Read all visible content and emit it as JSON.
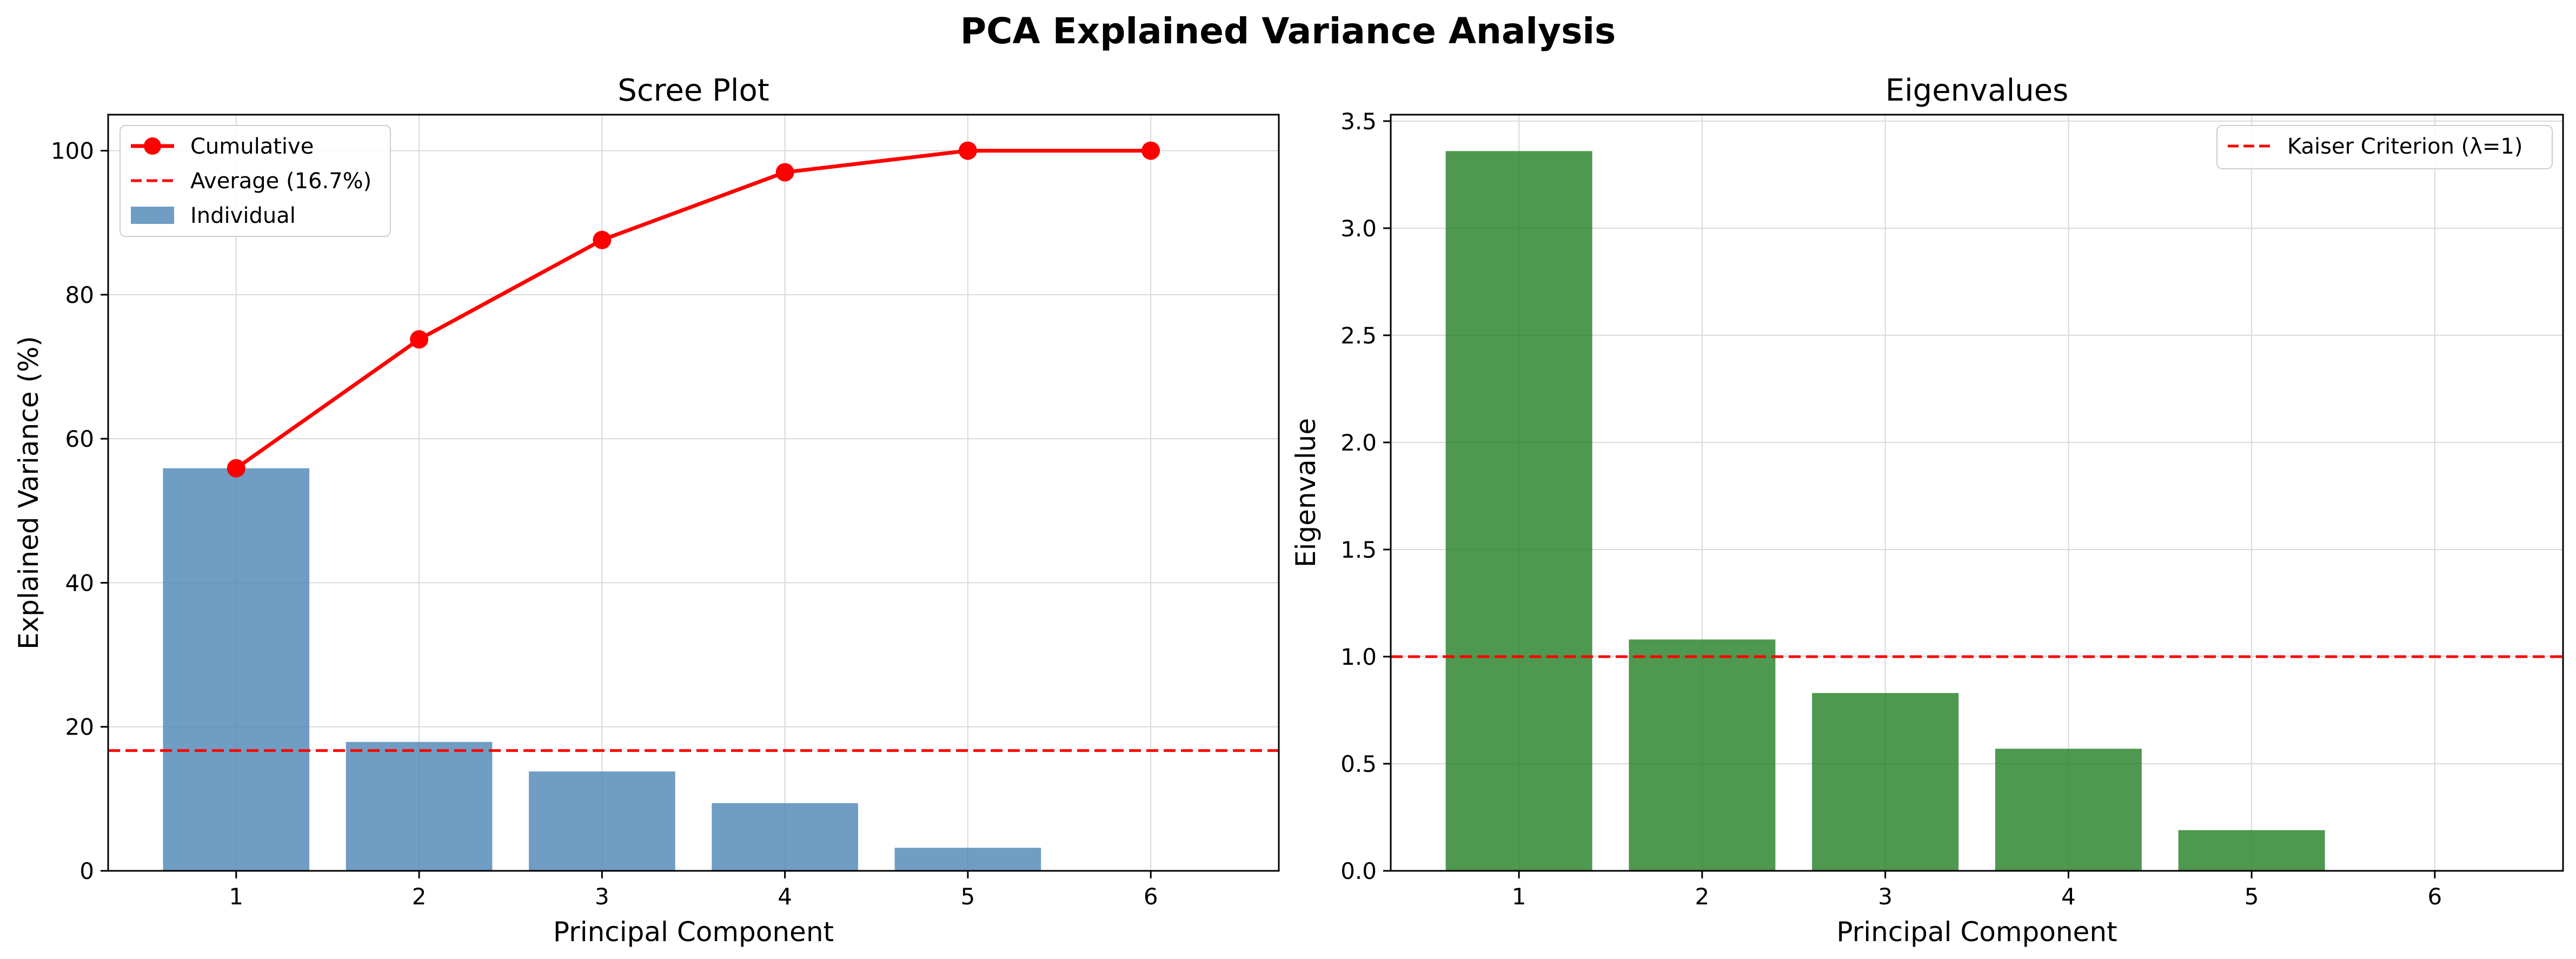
{
  "figure": {
    "title": "PCA Explained Variance Analysis"
  },
  "chart_data": [
    {
      "type": "bar",
      "title": "Scree Plot",
      "xlabel": "Principal Component",
      "ylabel": "Explained Variance (%)",
      "categories": [
        "1",
        "2",
        "3",
        "4",
        "5",
        "6"
      ],
      "xlim": [
        0.3,
        6.7
      ],
      "ylim": [
        0,
        105
      ],
      "yticks": [
        "0",
        "20",
        "40",
        "60",
        "80",
        "100"
      ],
      "grid": true,
      "legend_position": "top-left",
      "series": [
        {
          "name": "Individual",
          "kind": "bar",
          "color": "#4682b4",
          "values": [
            55.9,
            17.9,
            13.8,
            9.4,
            3.2,
            0.0
          ]
        },
        {
          "name": "Cumulative",
          "kind": "line",
          "color": "#ff0000",
          "values": [
            55.9,
            73.8,
            87.6,
            97.0,
            100.0,
            100.0
          ]
        }
      ],
      "reference_line": {
        "name": "Average (16.7%)",
        "value": 16.7,
        "color": "#ff0000",
        "style": "dashed"
      }
    },
    {
      "type": "bar",
      "title": "Eigenvalues",
      "xlabel": "Principal Component",
      "ylabel": "Eigenvalue",
      "categories": [
        "1",
        "2",
        "3",
        "4",
        "5",
        "6"
      ],
      "xlim": [
        0.3,
        6.7
      ],
      "ylim": [
        0,
        3.53
      ],
      "yticks": [
        "0.0",
        "0.5",
        "1.0",
        "1.5",
        "2.0",
        "2.5",
        "3.0",
        "3.5"
      ],
      "grid": true,
      "legend_position": "top-right",
      "series": [
        {
          "kind": "bar",
          "color": "#1e7b1e",
          "values": [
            3.36,
            1.08,
            0.83,
            0.57,
            0.19,
            0.0
          ]
        }
      ],
      "reference_line": {
        "name": "Kaiser Criterion (λ=1)",
        "value": 1.0,
        "color": "#ff0000",
        "style": "dashed"
      }
    }
  ]
}
